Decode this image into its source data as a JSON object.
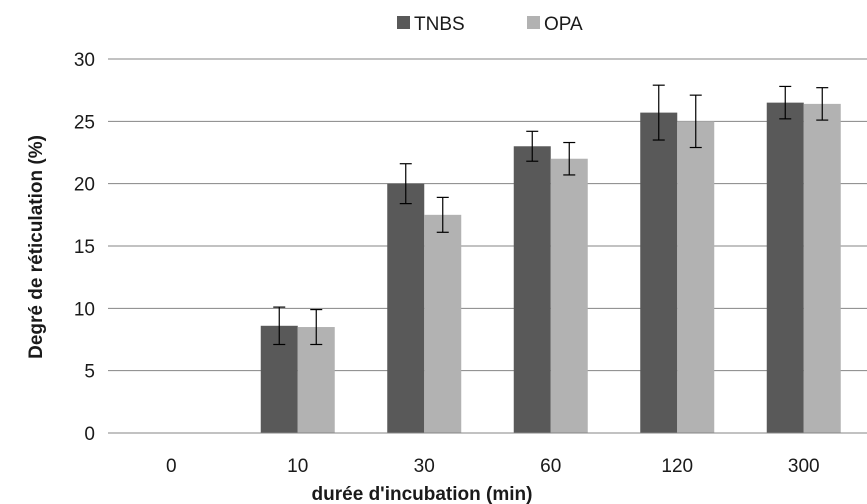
{
  "chart_data": {
    "type": "bar",
    "xlabel": "durée d'incubation (min)",
    "ylabel": "Degré de réticulation (%)",
    "categories": [
      "0",
      "10",
      "30",
      "60",
      "120",
      "300"
    ],
    "ylim": [
      0,
      30
    ],
    "yticks": [
      "0",
      "5",
      "10",
      "15",
      "20",
      "25",
      "30"
    ],
    "grid": true,
    "legend_position": "top",
    "series": [
      {
        "name": "TNBS",
        "color": "#595959",
        "values": [
          0,
          8.6,
          20.0,
          23.0,
          25.7,
          26.5
        ],
        "errors": [
          0,
          1.5,
          1.6,
          1.2,
          2.2,
          1.3
        ]
      },
      {
        "name": "OPA",
        "color": "#b2b2b2",
        "values": [
          0,
          8.5,
          17.5,
          22.0,
          25.0,
          26.4
        ],
        "errors": [
          0,
          1.4,
          1.4,
          1.3,
          2.1,
          1.3
        ]
      }
    ]
  }
}
